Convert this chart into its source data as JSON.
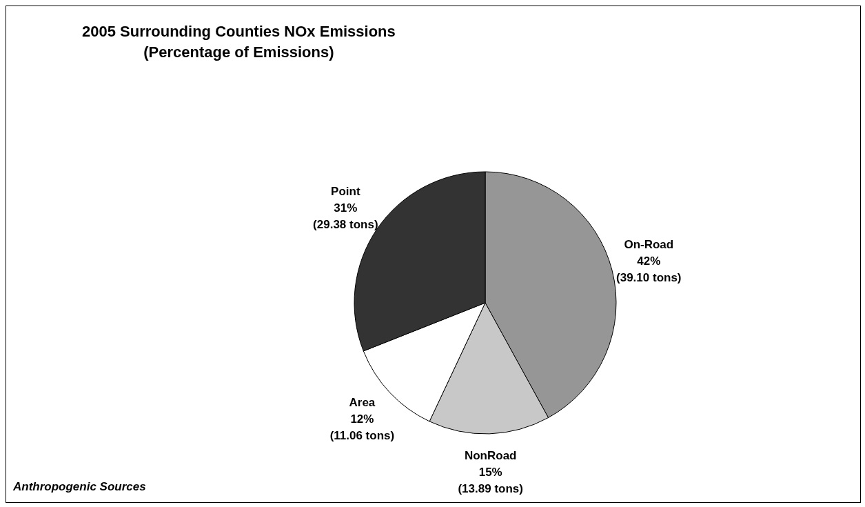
{
  "chart_data": {
    "type": "pie",
    "title": "2005 Surrounding Counties NOx Emissions\n(Percentage of Emissions)",
    "categories": [
      "On-Road",
      "NonRoad",
      "Area",
      "Point"
    ],
    "values": [
      42,
      15,
      12,
      31
    ],
    "value_labels": [
      "42%\n(39.10 tons)",
      "15%\n(13.89 tons)",
      "12%\n(11.06 tons)",
      "31%\n(29.38 tons)"
    ],
    "colors": [
      "#969696",
      "#c8c8c8",
      "#ffffff",
      "#333333"
    ],
    "annotations": [
      "Anthropogenic Sources"
    ]
  }
}
